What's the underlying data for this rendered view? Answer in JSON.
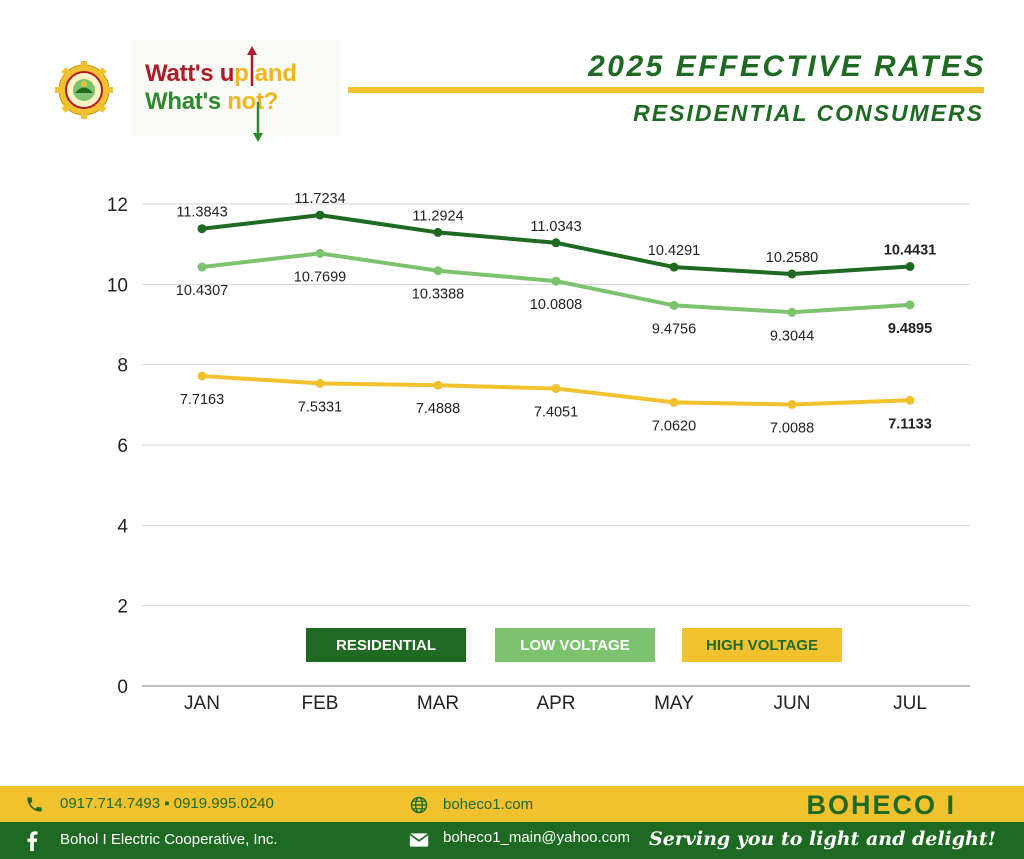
{
  "header": {
    "tagline_part1": "Watt's u",
    "tagline_part1b": "p and",
    "tagline_part2": "What's ",
    "tagline_part2b": "not?",
    "title": "2025 EFFECTIVE RATES",
    "subtitle": "RESIDENTIAL CONSUMERS"
  },
  "colors": {
    "residential": "#1f6a22",
    "low_voltage": "#7cc26f",
    "high_voltage": "#f2c12e",
    "footer_yellow": "#f2c12e",
    "footer_green": "#1f6a22"
  },
  "chart_data": {
    "type": "line",
    "categories": [
      "JAN",
      "FEB",
      "MAR",
      "APR",
      "MAY",
      "JUN",
      "JUL"
    ],
    "ylim": [
      0,
      12
    ],
    "yticks": [
      0,
      2,
      4,
      6,
      8,
      10,
      12
    ],
    "grid": true,
    "legend_position": "bottom-center",
    "series": [
      {
        "name": "RESIDENTIAL",
        "values": [
          11.3843,
          11.7234,
          11.2924,
          11.0343,
          10.4291,
          10.258,
          10.4431
        ]
      },
      {
        "name": "LOW VOLTAGE",
        "values": [
          10.4307,
          10.7699,
          10.3388,
          10.0808,
          9.4756,
          9.3044,
          9.4895
        ]
      },
      {
        "name": "HIGH VOLTAGE",
        "values": [
          7.7163,
          7.5331,
          7.4888,
          7.4051,
          7.062,
          7.0088,
          7.1133
        ]
      }
    ],
    "labels": [
      [
        "11.3843",
        "11.7234",
        "11.2924",
        "11.0343",
        "10.4291",
        "10.2580",
        "10.4431"
      ],
      [
        "10.4307",
        "10.7699",
        "10.3388",
        "10.0808",
        "9.4756",
        "9.3044",
        "9.4895"
      ],
      [
        "7.7163",
        "7.5331",
        "7.4888",
        "7.4051",
        "7.0620",
        "7.0088",
        "7.1133"
      ]
    ]
  },
  "footer": {
    "phones": "0917.714.7493 ▪ 0919.995.0240",
    "facebook": "Bohol I Electric Cooperative, Inc.",
    "website": "boheco1.com",
    "email": "boheco1_main@yahoo.com",
    "brand": "BOHECO I",
    "slogan": "Serving you to light and delight!"
  }
}
